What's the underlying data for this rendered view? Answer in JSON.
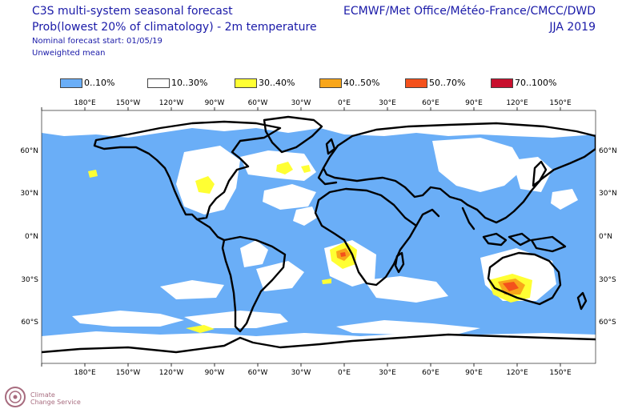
{
  "header": {
    "title": "C3S multi-system seasonal forecast",
    "subtitle": "Prob(lowest 20% of climatology) - 2m temperature",
    "start_line": "Nominal forecast start: 01/05/19",
    "mean_line": "Unweighted mean",
    "centres": "ECMWF/Met Office/Météo-France/CMCC/DWD",
    "season": "JJA 2019"
  },
  "legend": [
    {
      "label": "0..10%",
      "color": "#6aaef7"
    },
    {
      "label": "10..30%",
      "color": "#ffffff"
    },
    {
      "label": "30..40%",
      "color": "#ffff33"
    },
    {
      "label": "40..50%",
      "color": "#f8a61a"
    },
    {
      "label": "50..70%",
      "color": "#f4511c"
    },
    {
      "label": "70..100%",
      "color": "#c8102e"
    }
  ],
  "axes": {
    "lon_labels": [
      "180°E",
      "150°W",
      "120°W",
      "90°W",
      "60°W",
      "30°W",
      "0°E",
      "30°E",
      "60°E",
      "90°E",
      "120°E",
      "150°E"
    ],
    "lat_labels": [
      "60°N",
      "30°N",
      "0°N",
      "30°S",
      "60°S"
    ]
  },
  "logo": {
    "line1": "Climate",
    "line2": "Change Service"
  }
}
